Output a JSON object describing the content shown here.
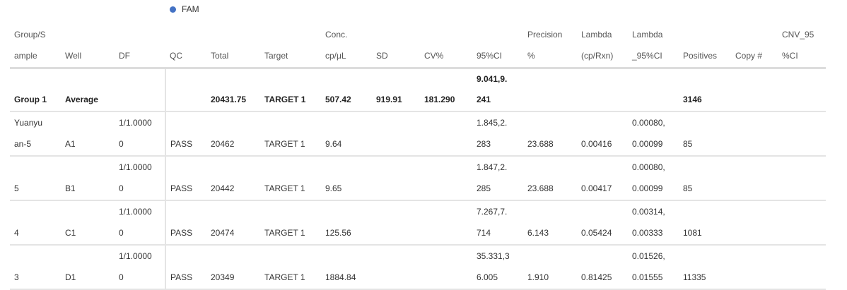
{
  "legend": {
    "label": "FAM",
    "color": "#4472c4"
  },
  "columns": [
    {
      "key": "group",
      "lines": [
        "Group/S",
        "ample"
      ]
    },
    {
      "key": "well",
      "lines": [
        "",
        "Well"
      ]
    },
    {
      "key": "df",
      "lines": [
        "",
        "DF"
      ]
    },
    {
      "key": "qc",
      "lines": [
        "",
        "QC"
      ]
    },
    {
      "key": "total",
      "lines": [
        "",
        "Total"
      ]
    },
    {
      "key": "target",
      "lines": [
        "",
        "Target"
      ]
    },
    {
      "key": "conc",
      "lines": [
        "Conc.",
        "cp/μL"
      ]
    },
    {
      "key": "sd",
      "lines": [
        "",
        "SD"
      ]
    },
    {
      "key": "cv",
      "lines": [
        "",
        "CV%"
      ]
    },
    {
      "key": "ci95",
      "lines": [
        "",
        "95%CI"
      ]
    },
    {
      "key": "precision",
      "lines": [
        "Precision",
        "%"
      ]
    },
    {
      "key": "lambda",
      "lines": [
        "Lambda",
        "(cp/Rxn)"
      ]
    },
    {
      "key": "lambda95",
      "lines": [
        "Lambda",
        "_95%CI"
      ]
    },
    {
      "key": "positives",
      "lines": [
        "",
        "Positives"
      ]
    },
    {
      "key": "copy",
      "lines": [
        "",
        "Copy #"
      ]
    },
    {
      "key": "cnv",
      "lines": [
        "CNV_95",
        "%CI"
      ]
    }
  ],
  "rows": [
    {
      "type": "avg",
      "cells": [
        [
          "",
          "Group 1"
        ],
        [
          "",
          "Average"
        ],
        [
          "",
          ""
        ],
        [
          "",
          ""
        ],
        [
          "",
          "20431.75"
        ],
        [
          "",
          "TARGET 1"
        ],
        [
          "",
          "507.42"
        ],
        [
          "",
          "919.91"
        ],
        [
          "",
          "181.290"
        ],
        [
          "9.041,9.",
          "241"
        ],
        [
          "",
          ""
        ],
        [
          "",
          ""
        ],
        [
          "",
          ""
        ],
        [
          "",
          "3146"
        ],
        [
          "",
          ""
        ],
        [
          "",
          ""
        ]
      ]
    },
    {
      "type": "data",
      "cells": [
        [
          "Yuanyu",
          "an-5"
        ],
        [
          "",
          "A1"
        ],
        [
          "1/1.0000",
          "0"
        ],
        [
          "",
          "PASS"
        ],
        [
          "",
          "20462"
        ],
        [
          "",
          "TARGET 1"
        ],
        [
          "",
          "9.64"
        ],
        [
          "",
          ""
        ],
        [
          "",
          ""
        ],
        [
          "1.845,2.",
          "283"
        ],
        [
          "",
          "23.688"
        ],
        [
          "",
          "0.00416"
        ],
        [
          "0.00080,",
          "0.00099"
        ],
        [
          "",
          "85"
        ],
        [
          "",
          ""
        ],
        [
          "",
          ""
        ]
      ]
    },
    {
      "type": "data",
      "cells": [
        [
          "",
          "5"
        ],
        [
          "",
          "B1"
        ],
        [
          "1/1.0000",
          "0"
        ],
        [
          "",
          "PASS"
        ],
        [
          "",
          "20442"
        ],
        [
          "",
          "TARGET 1"
        ],
        [
          "",
          "9.65"
        ],
        [
          "",
          ""
        ],
        [
          "",
          ""
        ],
        [
          "1.847,2.",
          "285"
        ],
        [
          "",
          "23.688"
        ],
        [
          "",
          "0.00417"
        ],
        [
          "0.00080,",
          "0.00099"
        ],
        [
          "",
          "85"
        ],
        [
          "",
          ""
        ],
        [
          "",
          ""
        ]
      ]
    },
    {
      "type": "data",
      "cells": [
        [
          "",
          "4"
        ],
        [
          "",
          "C1"
        ],
        [
          "1/1.0000",
          "0"
        ],
        [
          "",
          "PASS"
        ],
        [
          "",
          "20474"
        ],
        [
          "",
          "TARGET 1"
        ],
        [
          "",
          "125.56"
        ],
        [
          "",
          ""
        ],
        [
          "",
          ""
        ],
        [
          "7.267,7.",
          "714"
        ],
        [
          "",
          "6.143"
        ],
        [
          "",
          "0.05424"
        ],
        [
          "0.00314,",
          "0.00333"
        ],
        [
          "",
          "1081"
        ],
        [
          "",
          ""
        ],
        [
          "",
          ""
        ]
      ]
    },
    {
      "type": "data",
      "cells": [
        [
          "",
          "3"
        ],
        [
          "",
          "D1"
        ],
        [
          "1/1.0000",
          "0"
        ],
        [
          "",
          "PASS"
        ],
        [
          "",
          "20349"
        ],
        [
          "",
          "TARGET 1"
        ],
        [
          "",
          "1884.84"
        ],
        [
          "",
          ""
        ],
        [
          "",
          ""
        ],
        [
          "35.331,3",
          "6.005"
        ],
        [
          "",
          "1.910"
        ],
        [
          "",
          "0.81425"
        ],
        [
          "0.01526,",
          "0.01555"
        ],
        [
          "",
          "11335"
        ],
        [
          "",
          ""
        ],
        [
          "",
          ""
        ]
      ]
    }
  ]
}
